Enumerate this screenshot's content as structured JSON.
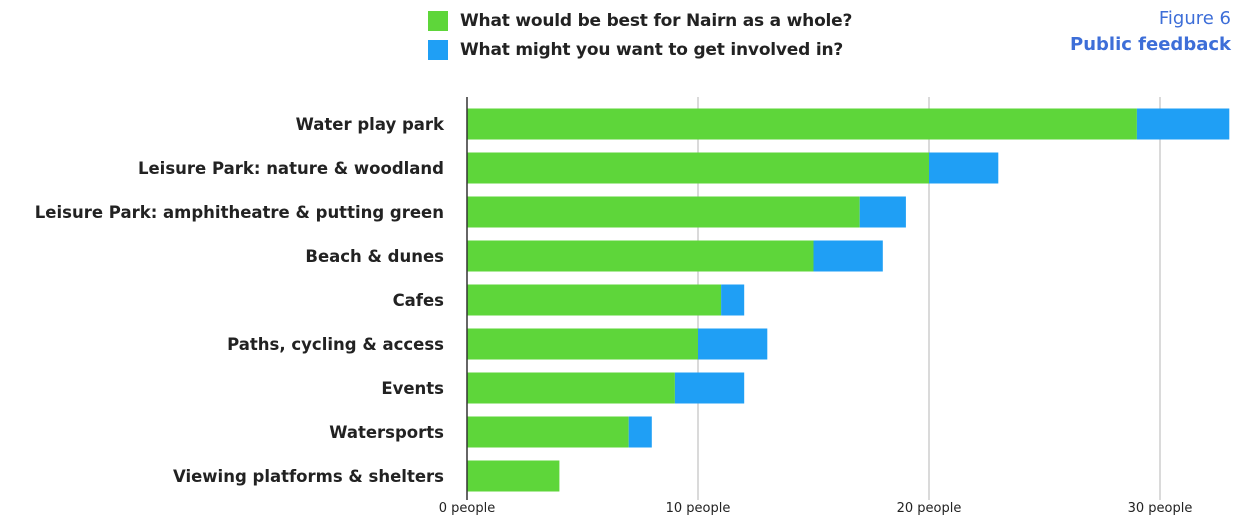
{
  "figure": {
    "number": "Figure 6",
    "title": "Public feedback"
  },
  "colors": {
    "best": "#5ed63a",
    "involved": "#1f9ff5",
    "grid": "#b5b5b5",
    "axis": "#333333"
  },
  "chart_data": {
    "type": "bar",
    "orientation": "horizontal",
    "stacked": true,
    "categories": [
      "Water play park",
      "Leisure Park: nature & woodland",
      "Leisure Park: amphitheatre & putting green",
      "Beach & dunes",
      "Cafes",
      "Paths, cycling & access",
      "Events",
      "Watersports",
      "Viewing platforms & shelters"
    ],
    "series": [
      {
        "name": "What would be best for Nairn as a whole?",
        "color": "#5ed63a",
        "values": [
          29,
          20,
          17,
          15,
          11,
          10,
          9,
          7,
          4
        ]
      },
      {
        "name": "What might you want to get involved in?",
        "color": "#1f9ff5",
        "values": [
          4,
          3,
          2,
          3,
          1,
          3,
          3,
          1,
          0
        ]
      }
    ],
    "xlim": [
      0,
      33
    ],
    "xticks": [
      {
        "value": 0,
        "label": "0 people"
      },
      {
        "value": 10,
        "label": "10 people"
      },
      {
        "value": 20,
        "label": "20 people"
      },
      {
        "value": 30,
        "label": "30 people"
      }
    ],
    "grid": "vertical",
    "legend": "top"
  }
}
